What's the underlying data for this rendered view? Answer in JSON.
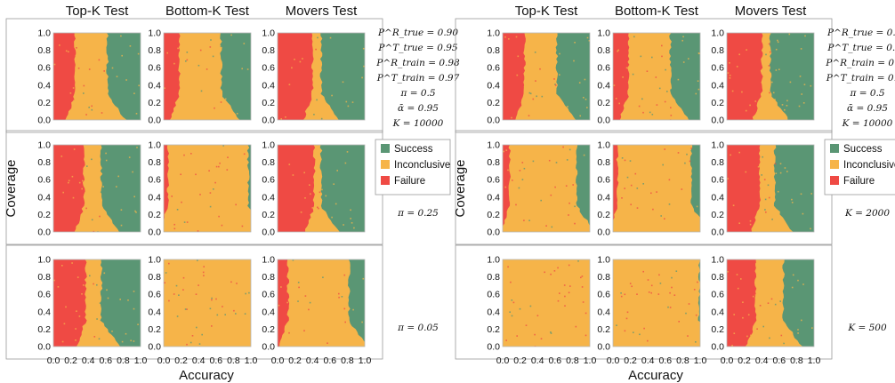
{
  "figure": {
    "colors": {
      "success": "#5a9674",
      "inconclusive": "#f6b449",
      "failure": "#ef4a44"
    },
    "legend": [
      {
        "key": "success",
        "label": "Success"
      },
      {
        "key": "inconclusive",
        "label": "Inconclusive"
      },
      {
        "key": "failure",
        "label": "Failure"
      }
    ],
    "params": [
      "P^R_true = 0.90",
      "P^T_true = 0.95",
      "P^R_train = 0.98",
      "P^T_train = 0.97",
      "π = 0.5",
      "ᾱ = 0.95",
      "K = 10000"
    ]
  },
  "chart_data": [
    {
      "type": "heatmap",
      "title": "",
      "columns": [
        "Top-K Test",
        "Bottom-K Test",
        "Movers Test"
      ],
      "xlabel": "Accuracy",
      "ylabel": "Coverage",
      "xlim": [
        0,
        1
      ],
      "ylim": [
        0,
        1
      ],
      "xticks": [
        "0.0",
        "0.2",
        "0.4",
        "0.6",
        "0.8",
        "1.0"
      ],
      "yticks": [
        "0.0",
        "0.2",
        "0.4",
        "0.6",
        "0.8",
        "1.0"
      ],
      "legend_position": "right of middle row",
      "rows": [
        {
          "label": "",
          "panels": [
            {
              "test": "Top-K Test",
              "failure_below_accuracy": 0.25,
              "success_above_accuracy": 0.62
            },
            {
              "test": "Bottom-K Test",
              "failure_below_accuracy": 0.18,
              "success_above_accuracy": 0.66
            },
            {
              "test": "Movers Test",
              "failure_below_accuracy": 0.4,
              "success_above_accuracy": 0.5
            }
          ]
        },
        {
          "label": "π = 0.25",
          "panels": [
            {
              "test": "Top-K Test",
              "failure_below_accuracy": 0.35,
              "success_above_accuracy": 0.55
            },
            {
              "test": "Bottom-K Test",
              "failure_below_accuracy": 0.05,
              "success_above_accuracy": 0.97
            },
            {
              "test": "Movers Test",
              "failure_below_accuracy": 0.42,
              "success_above_accuracy": 0.5
            }
          ]
        },
        {
          "label": "π = 0.05",
          "panels": [
            {
              "test": "Top-K Test",
              "failure_below_accuracy": 0.37,
              "success_above_accuracy": 0.55
            },
            {
              "test": "Bottom-K Test",
              "failure_below_accuracy": 0.0,
              "success_above_accuracy": 1.0
            },
            {
              "test": "Movers Test",
              "failure_below_accuracy": 0.12,
              "success_above_accuracy": 0.82
            }
          ]
        }
      ]
    },
    {
      "type": "heatmap",
      "title": "",
      "columns": [
        "Top-K Test",
        "Bottom-K Test",
        "Movers Test"
      ],
      "xlabel": "Accuracy",
      "ylabel": "Coverage",
      "xlim": [
        0,
        1
      ],
      "ylim": [
        0,
        1
      ],
      "xticks": [
        "0.0",
        "0.2",
        "0.4",
        "0.6",
        "0.8",
        "1.0"
      ],
      "yticks": [
        "0.0",
        "0.2",
        "0.4",
        "0.6",
        "0.8",
        "1.0"
      ],
      "legend_position": "right of middle row",
      "rows": [
        {
          "label": "",
          "panels": [
            {
              "test": "Top-K Test",
              "failure_below_accuracy": 0.25,
              "success_above_accuracy": 0.62
            },
            {
              "test": "Bottom-K Test",
              "failure_below_accuracy": 0.18,
              "success_above_accuracy": 0.66
            },
            {
              "test": "Movers Test",
              "failure_below_accuracy": 0.4,
              "success_above_accuracy": 0.5
            }
          ]
        },
        {
          "label": "K = 2000",
          "panels": [
            {
              "test": "Top-K Test",
              "failure_below_accuracy": 0.08,
              "success_above_accuracy": 0.85
            },
            {
              "test": "Bottom-K Test",
              "failure_below_accuracy": 0.05,
              "success_above_accuracy": 0.9
            },
            {
              "test": "Movers Test",
              "failure_below_accuracy": 0.38,
              "success_above_accuracy": 0.55
            }
          ]
        },
        {
          "label": "K = 500",
          "panels": [
            {
              "test": "Top-K Test",
              "failure_below_accuracy": 0.0,
              "success_above_accuracy": 1.0
            },
            {
              "test": "Bottom-K Test",
              "failure_below_accuracy": 0.0,
              "success_above_accuracy": 0.99
            },
            {
              "test": "Movers Test",
              "failure_below_accuracy": 0.33,
              "success_above_accuracy": 0.65
            }
          ]
        }
      ]
    }
  ]
}
